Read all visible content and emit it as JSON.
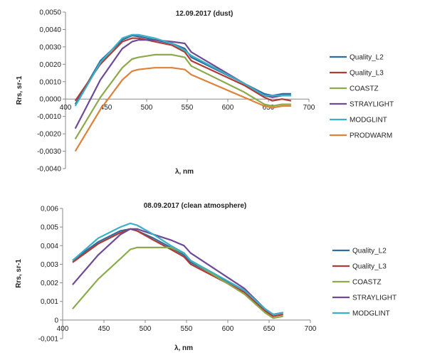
{
  "chart_data": [
    {
      "type": "line",
      "title": "12.09.2017 (dust)",
      "xlabel": "λ, nm",
      "ylabel": "Rrs, sr-1",
      "xlim": [
        400,
        700
      ],
      "ylim": [
        -0.004,
        0.005
      ],
      "x_ticks": [
        "400",
        "450",
        "500",
        "550",
        "600",
        "650",
        "700"
      ],
      "y_ticks": [
        "0,0050",
        "0,0040",
        "0,0030",
        "0,0020",
        "0,0010",
        "0,0000",
        "-0,0010",
        "-0,0020",
        "-0,0030",
        "-0,0040"
      ],
      "y_tick_values": [
        0.005,
        0.004,
        0.003,
        0.002,
        0.001,
        0.0,
        -0.001,
        -0.002,
        -0.003,
        -0.004
      ],
      "legend_position": "right",
      "grid": false,
      "series": [
        {
          "name": "Quality_L2",
          "color": "#2E6E9E",
          "x": [
            412,
            443,
            470,
            482,
            490,
            510,
            531,
            547,
            555,
            620,
            645,
            655,
            667,
            678
          ],
          "y": [
            -0.0003,
            0.0022,
            0.0034,
            0.00365,
            0.0036,
            0.0034,
            0.0032,
            0.0029,
            0.0024,
            0.0009,
            0.0003,
            0.0002,
            0.0003,
            0.0003
          ]
        },
        {
          "name": "Quality_L3",
          "color": "#B03A35",
          "x": [
            412,
            443,
            470,
            482,
            490,
            510,
            531,
            547,
            555,
            620,
            645,
            655,
            667,
            678
          ],
          "y": [
            -0.0001,
            0.002,
            0.0033,
            0.0035,
            0.0035,
            0.0033,
            0.0031,
            0.0027,
            0.0022,
            0.0008,
            0.0001,
            -0.0001,
            0.0,
            -0.0001
          ]
        },
        {
          "name": "COASTZ",
          "color": "#8CAA4A",
          "x": [
            412,
            443,
            470,
            482,
            490,
            510,
            531,
            547,
            555,
            620,
            645,
            655,
            667,
            678
          ],
          "y": [
            -0.0023,
            0.0001,
            0.0018,
            0.0023,
            0.0024,
            0.00255,
            0.00255,
            0.0024,
            0.0019,
            0.0004,
            -0.0003,
            -0.0004,
            -0.0003,
            -0.0003
          ]
        },
        {
          "name": "STRAYLIGHT",
          "color": "#6E4A96",
          "x": [
            412,
            443,
            470,
            482,
            490,
            510,
            531,
            547,
            555,
            620,
            645,
            655,
            667,
            678
          ],
          "y": [
            -0.0017,
            0.0011,
            0.0029,
            0.0033,
            0.0034,
            0.0034,
            0.0033,
            0.0032,
            0.0027,
            0.0009,
            0.0002,
            0.0001,
            0.0002,
            0.0002
          ]
        },
        {
          "name": "MODGLINT",
          "color": "#3BAFC8",
          "x": [
            412,
            443,
            470,
            482,
            490,
            510,
            531,
            547,
            555,
            620,
            645,
            655,
            667,
            678
          ],
          "y": [
            -0.0004,
            0.0021,
            0.0035,
            0.0037,
            0.0037,
            0.0035,
            0.0032,
            0.0028,
            0.0025,
            0.0009,
            0.0002,
            0.0002,
            0.0002,
            0.0002
          ]
        },
        {
          "name": "PRODWARM",
          "color": "#E0813A",
          "x": [
            412,
            443,
            470,
            482,
            490,
            510,
            531,
            547,
            555,
            620,
            645,
            655,
            667,
            678
          ],
          "y": [
            -0.003,
            -0.0006,
            0.0011,
            0.0016,
            0.0017,
            0.0018,
            0.0018,
            0.0017,
            0.0014,
            0.0001,
            -0.0004,
            -0.0005,
            -0.0004,
            -0.0004
          ]
        }
      ]
    },
    {
      "type": "line",
      "title": "08.09.2017 (clean atmosphere)",
      "xlabel": "λ, nm",
      "ylabel": "Rrs, sr-1",
      "xlim": [
        400,
        700
      ],
      "ylim": [
        -0.001,
        0.006
      ],
      "x_ticks": [
        "400",
        "450",
        "500",
        "550",
        "600",
        "650",
        "700"
      ],
      "y_ticks": [
        "0,006",
        "0,005",
        "0,004",
        "0,003",
        "0,002",
        "0,001",
        "0",
        "-0,001"
      ],
      "y_tick_values": [
        0.006,
        0.005,
        0.004,
        0.003,
        0.002,
        0.001,
        0.0,
        -0.001
      ],
      "legend_position": "right",
      "grid": false,
      "series": [
        {
          "name": "Quality_L2",
          "color": "#2E6E9E",
          "x": [
            412,
            443,
            470,
            482,
            490,
            510,
            531,
            547,
            555,
            620,
            645,
            655,
            667
          ],
          "y": [
            0.0032,
            0.0042,
            0.0048,
            0.0049,
            0.0048,
            0.0044,
            0.0039,
            0.0035,
            0.0031,
            0.0016,
            0.0006,
            0.0003,
            0.0004
          ]
        },
        {
          "name": "Quality_L3",
          "color": "#B03A35",
          "x": [
            412,
            443,
            470,
            482,
            490,
            510,
            531,
            547,
            555,
            620,
            645,
            655,
            667
          ],
          "y": [
            0.0031,
            0.0041,
            0.0047,
            0.0049,
            0.0048,
            0.0043,
            0.0038,
            0.0034,
            0.003,
            0.0015,
            0.0005,
            0.0002,
            0.0003
          ]
        },
        {
          "name": "COASTZ",
          "color": "#8CAA4A",
          "x": [
            412,
            443,
            470,
            482,
            490,
            510,
            531,
            547,
            555,
            620,
            645,
            655,
            667
          ],
          "y": [
            0.0006,
            0.0022,
            0.0033,
            0.0038,
            0.0039,
            0.0039,
            0.0039,
            0.0036,
            0.0032,
            0.0014,
            0.0004,
            0.0001,
            0.0002
          ]
        },
        {
          "name": "STRAYLIGHT",
          "color": "#6E4A96",
          "x": [
            412,
            443,
            470,
            482,
            490,
            510,
            531,
            547,
            555,
            620,
            645,
            655,
            667
          ],
          "y": [
            0.0019,
            0.0035,
            0.0046,
            0.0049,
            0.0049,
            0.0046,
            0.0043,
            0.004,
            0.0036,
            0.0017,
            0.0006,
            0.0003,
            0.0004
          ]
        },
        {
          "name": "MODGLINT",
          "color": "#3BAFC8",
          "x": [
            412,
            443,
            470,
            482,
            490,
            510,
            531,
            547,
            555,
            620,
            645,
            655,
            667
          ],
          "y": [
            0.0032,
            0.0044,
            0.005,
            0.0052,
            0.0051,
            0.0046,
            0.004,
            0.0036,
            0.0032,
            0.0016,
            0.0006,
            0.0003,
            0.0004
          ]
        }
      ]
    }
  ]
}
